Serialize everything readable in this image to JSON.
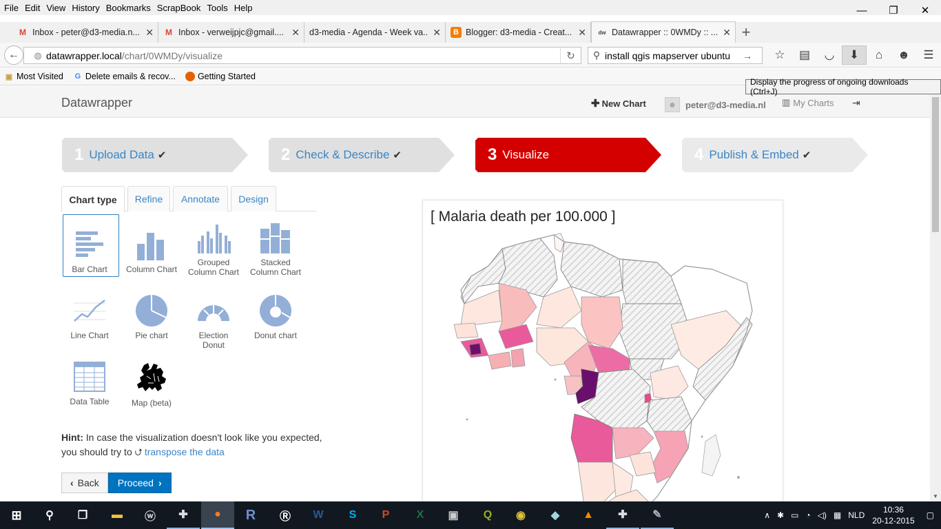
{
  "menu": [
    "File",
    "Edit",
    "View",
    "History",
    "Bookmarks",
    "ScrapBook",
    "Tools",
    "Help"
  ],
  "window_controls": {
    "minimize": "—",
    "maximize": "❐",
    "close": "✕"
  },
  "tabs": [
    {
      "title": "Inbox - peter@d3-media.n...",
      "icon": "gmail-icon",
      "icon_text": "M",
      "icon_color": "#d44638"
    },
    {
      "title": "Inbox - verweijpjc@gmail....",
      "icon": "gmail-icon",
      "icon_text": "M",
      "icon_color": "#d44638"
    },
    {
      "title": "d3-media - Agenda - Week va...",
      "icon": "calendar-icon",
      "icon_text": "",
      "icon_color": "#777"
    },
    {
      "title": "Blogger: d3-media - Creat...",
      "icon": "blogger-icon",
      "icon_text": "B",
      "icon_color": "#f57d00"
    },
    {
      "title": "Datawrapper :: 0WMDy :: ...",
      "icon": "datawrapper-icon",
      "icon_text": "dw",
      "icon_color": "#444"
    }
  ],
  "url": {
    "host": "datawrapper.local",
    "path": "/chart/0WMDy/visualize"
  },
  "search": {
    "value": "install qgis mapserver ubuntu"
  },
  "bookmarks": [
    {
      "label": "Most Visited",
      "icon": "bookmark-folder-icon"
    },
    {
      "label": "Delete emails & recov...",
      "icon": "google-icon"
    },
    {
      "label": "Getting Started",
      "icon": "firefox-icon"
    }
  ],
  "tooltip": "Display the progress of ongoing downloads (Ctrl+J)",
  "app": {
    "brand": "Datawrapper",
    "new_chart": "New Chart",
    "user": "peter@d3-media.nl",
    "my_charts": "My Charts"
  },
  "steps": [
    {
      "num": "1",
      "label": "Upload Data",
      "done": "✔"
    },
    {
      "num": "2",
      "label": "Check & Describe",
      "done": "✔"
    },
    {
      "num": "3",
      "label": "Visualize",
      "done": ""
    },
    {
      "num": "4",
      "label": "Publish & Embed",
      "done": "✔"
    }
  ],
  "chart_tabs": [
    "Chart type",
    "Refine",
    "Annotate",
    "Design"
  ],
  "chart_types": [
    {
      "l1": "",
      "l2": "Bar Chart"
    },
    {
      "l1": "",
      "l2": "Column Chart"
    },
    {
      "l1": "Grouped",
      "l2": "Column Chart"
    },
    {
      "l1": "Stacked",
      "l2": "Column Chart"
    },
    {
      "l1": "",
      "l2": "Line Chart"
    },
    {
      "l1": "",
      "l2": "Pie chart"
    },
    {
      "l1": "Election",
      "l2": "Donut"
    },
    {
      "l1": "",
      "l2": "Donut chart"
    },
    {
      "l1": "",
      "l2": "Data Table"
    },
    {
      "l1": "",
      "l2": "Map (beta)"
    }
  ],
  "hint": {
    "label": "Hint:",
    "text1": " In case the visualization doesn't look like you expected, you should try to ",
    "link": "transpose the data"
  },
  "buttons": {
    "back": "Back",
    "proceed": "Proceed"
  },
  "chart": {
    "title": "[ Malaria death per 100.000 ]"
  },
  "colors": {
    "accent": "#d40000",
    "link": "#3a85c6",
    "primary": "#0073c0",
    "choropleth_low": "#fdebe6",
    "choropleth_high": "#6b0f6f"
  },
  "taskbar_apps": [
    "start",
    "search",
    "task-view",
    "file-explorer",
    "wordpress",
    "inkscape",
    "firefox",
    "r",
    "r-studio",
    "word",
    "skype",
    "powerpoint",
    "excel",
    "kindle",
    "qgis",
    "chrome",
    "app",
    "vlc",
    "inkscape2",
    "paint"
  ],
  "tray": {
    "lang": "NLD",
    "time": "10:36",
    "date": "20-12-2015"
  }
}
